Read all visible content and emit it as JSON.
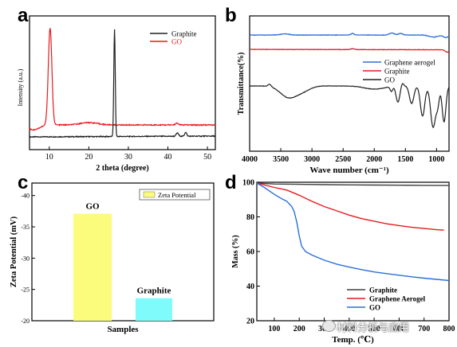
{
  "panels": {
    "a": "a",
    "b": "b",
    "c": "c",
    "d": "d"
  },
  "watermark": "材料分析与应用",
  "chart_data": [
    {
      "id": "a",
      "type": "line",
      "xlabel": "2 theta (degree)",
      "ylabel": "Intensity (a.u.)",
      "xlim": [
        5,
        52
      ],
      "xticks": [
        10,
        20,
        30,
        40,
        50
      ],
      "legend_position": "top-right",
      "series": [
        {
          "name": "Graphite",
          "color": "#202020",
          "kind": "graphite"
        },
        {
          "name": "GO",
          "color": "#e8191c",
          "kind": "go"
        }
      ]
    },
    {
      "id": "b",
      "type": "line",
      "xlabel": "Wave number (cm⁻¹)",
      "ylabel": "Transmittance(%)",
      "xlim": [
        4000,
        800
      ],
      "xticks": [
        4000,
        3500,
        3000,
        2500,
        2000,
        1500,
        1000
      ],
      "legend_position": "center-right",
      "series": [
        {
          "name": "Graphene aerogel",
          "color": "#2f6fd6",
          "kind": "aerogel"
        },
        {
          "name": "Graphite",
          "color": "#e8191c",
          "kind": "graphite"
        },
        {
          "name": "GO",
          "color": "#202020",
          "kind": "go"
        }
      ]
    },
    {
      "id": "c",
      "type": "bar",
      "xlabel": "Samples",
      "ylabel": "Zeta Potential (mV)",
      "ylim": [
        -20,
        -42
      ],
      "yticks": [
        -40,
        -35,
        -30,
        -25,
        -20
      ],
      "legend_position": "top-right",
      "legend": "Zeta Potential",
      "categories": [
        "GO",
        "Graphite"
      ],
      "values": [
        -37.1,
        -23.6
      ],
      "colors": [
        "#fbfb7c",
        "#7ffbfb"
      ]
    },
    {
      "id": "d",
      "type": "line",
      "xlabel": "Temp. (℃)",
      "ylabel": "Mass (%)",
      "xlim": [
        30,
        800
      ],
      "ylim": [
        20,
        100
      ],
      "yticks": [
        20,
        40,
        60,
        80,
        100
      ],
      "xticks": [
        100,
        200,
        300,
        400,
        500,
        600,
        700,
        800
      ],
      "legend_position": "bottom-right",
      "series": [
        {
          "name": "Graphite",
          "color": "#404040",
          "x": [
            30,
            100,
            200,
            300,
            400,
            500,
            600,
            700,
            800
          ],
          "y": [
            99.5,
            99,
            98.8,
            98.6,
            98.5,
            98.4,
            98.3,
            98.2,
            98.1
          ]
        },
        {
          "name": "Graphene Aerogel",
          "color": "#e8191c",
          "x": [
            30,
            100,
            150,
            200,
            250,
            300,
            350,
            400,
            450,
            500,
            550,
            600,
            650,
            700,
            750,
            780
          ],
          "y": [
            99.5,
            97,
            95.5,
            92.5,
            89,
            86,
            83.5,
            81,
            79,
            77.5,
            76,
            75,
            74,
            73.3,
            72.6,
            72.3
          ]
        },
        {
          "name": "GO",
          "color": "#2a6fdb",
          "x": [
            30,
            60,
            100,
            130,
            150,
            170,
            180,
            190,
            200,
            210,
            225,
            250,
            300,
            350,
            400,
            450,
            500,
            550,
            600,
            650,
            700,
            750,
            800
          ],
          "y": [
            99.5,
            97,
            93,
            90.5,
            89,
            86,
            83,
            77,
            69,
            63,
            60,
            58,
            55,
            52.7,
            51,
            49.5,
            48.2,
            47.2,
            46.3,
            45.4,
            44.6,
            43.9,
            43.2
          ]
        }
      ]
    }
  ]
}
